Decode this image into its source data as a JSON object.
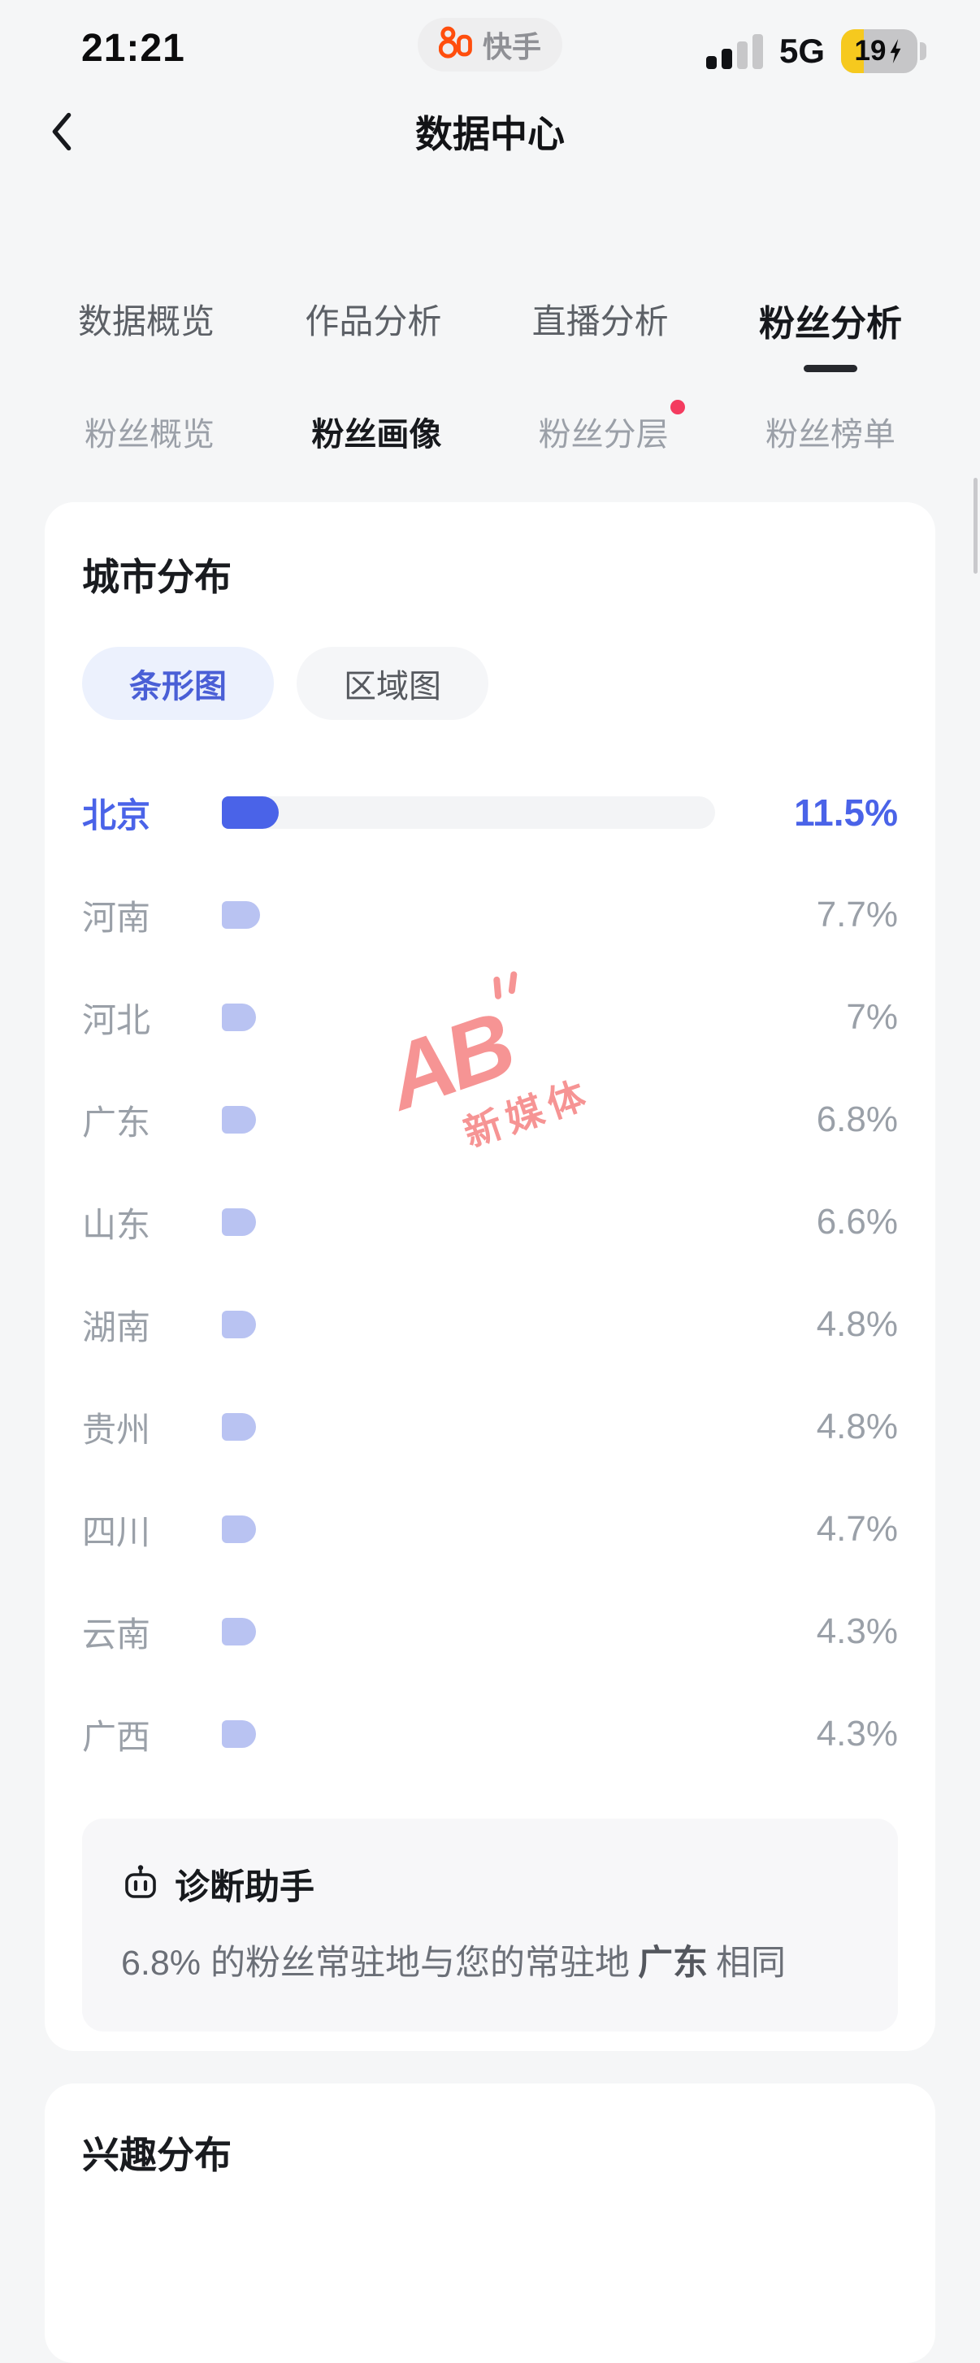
{
  "theme": {
    "accent": "#4a63e8",
    "bar_light": "#b9c3f2",
    "track": "#f3f4f6",
    "badge": "#f43b5f",
    "watermark": "#f68f8f",
    "battery_yellow": "#f6c91e",
    "brand_orange": "#ff4e0d"
  },
  "status_bar": {
    "time": "21:21",
    "app_badge": "快手",
    "network": "5G",
    "battery_percent": "19"
  },
  "header": {
    "title": "数据中心"
  },
  "main_tabs": [
    {
      "label": "数据概览",
      "active": false
    },
    {
      "label": "作品分析",
      "active": false
    },
    {
      "label": "直播分析",
      "active": false
    },
    {
      "label": "粉丝分析",
      "active": true
    }
  ],
  "sub_tabs": [
    {
      "label": "粉丝概览",
      "active": false,
      "badge": false
    },
    {
      "label": "粉丝画像",
      "active": true,
      "badge": false
    },
    {
      "label": "粉丝分层",
      "active": false,
      "badge": true
    },
    {
      "label": "粉丝榜单",
      "active": false,
      "badge": false
    }
  ],
  "city_card": {
    "title": "城市分布",
    "view_toggle": [
      {
        "label": "条形图",
        "active": true
      },
      {
        "label": "区域图",
        "active": false
      }
    ],
    "diagnosis": {
      "title": "诊断助手",
      "text_prefix": "6.8% 的粉丝常驻地与您的常驻地",
      "highlight": "广东",
      "text_suffix": "相同"
    }
  },
  "chart_data": {
    "type": "bar",
    "orientation": "horizontal",
    "title": "城市分布",
    "categories": [
      "北京",
      "河南",
      "河北",
      "广东",
      "山东",
      "湖南",
      "贵州",
      "四川",
      "云南",
      "广西"
    ],
    "values": [
      11.5,
      7.7,
      7,
      6.8,
      6.6,
      4.8,
      4.8,
      4.7,
      4.3,
      4.3
    ],
    "value_labels": [
      "11.5%",
      "7.7%",
      "7%",
      "6.8%",
      "6.6%",
      "4.8%",
      "4.8%",
      "4.7%",
      "4.3%",
      "4.3%"
    ],
    "xlabel": "",
    "ylabel": "",
    "xlim": [
      0,
      100
    ],
    "highlight_index": 0,
    "min_bar_pct": 7,
    "grid": false,
    "legend": false
  },
  "watermark": {
    "logo": "AB",
    "text": "新媒体"
  },
  "interest_card": {
    "title": "兴趣分布"
  }
}
